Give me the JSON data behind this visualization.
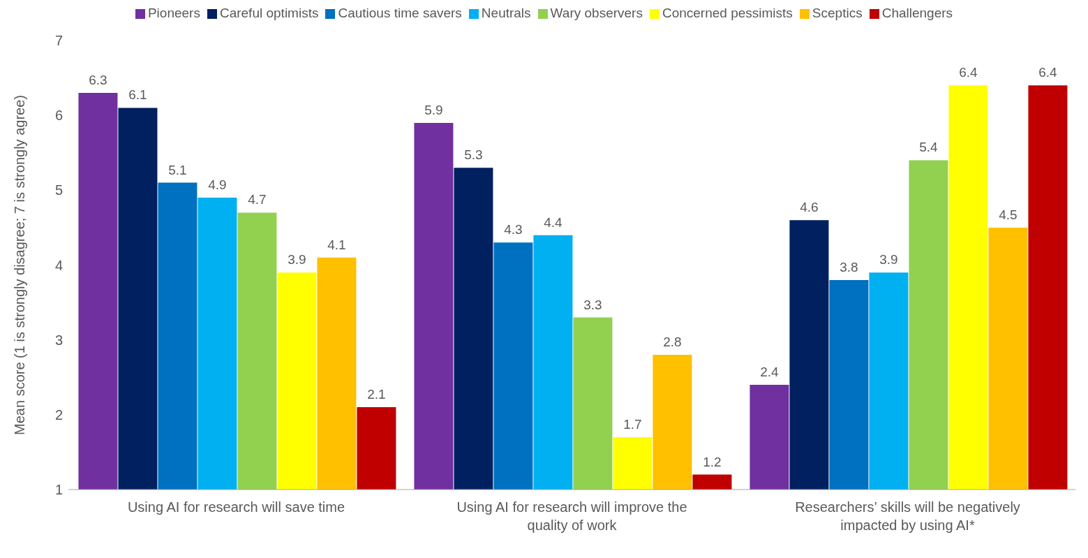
{
  "chart_data": {
    "type": "bar",
    "ylabel": "Mean score (1 is strongly disagree; 7 is strongly agree)",
    "categories": [
      "Using AI for research will save time",
      "Using AI for research will improve the quality of work",
      "Researchers’ skills will be negatively impacted by using AI*"
    ],
    "series": [
      {
        "name": "Pioneers",
        "color": "#7030a0",
        "values": [
          6.3,
          5.9,
          2.4
        ]
      },
      {
        "name": "Careful optimists",
        "color": "#002060",
        "values": [
          6.1,
          5.3,
          4.6
        ]
      },
      {
        "name": "Cautious time savers",
        "color": "#0070c0",
        "values": [
          5.1,
          4.3,
          3.8
        ]
      },
      {
        "name": "Neutrals",
        "color": "#00b0f0",
        "values": [
          4.9,
          4.4,
          3.9
        ]
      },
      {
        "name": "Wary observers",
        "color": "#92d050",
        "values": [
          4.7,
          3.3,
          5.4
        ]
      },
      {
        "name": "Concerned pessimists",
        "color": "#ffff00",
        "values": [
          3.9,
          1.7,
          6.4
        ]
      },
      {
        "name": "Sceptics",
        "color": "#ffc000",
        "values": [
          4.1,
          2.8,
          4.5
        ]
      },
      {
        "name": "Challengers",
        "color": "#c00000",
        "values": [
          2.1,
          1.2,
          6.4
        ]
      }
    ],
    "ylim": [
      1,
      7
    ],
    "yticks": [
      1,
      2,
      3,
      4,
      5,
      6,
      7
    ],
    "grid": false,
    "legend": "top",
    "data_labels": true
  }
}
